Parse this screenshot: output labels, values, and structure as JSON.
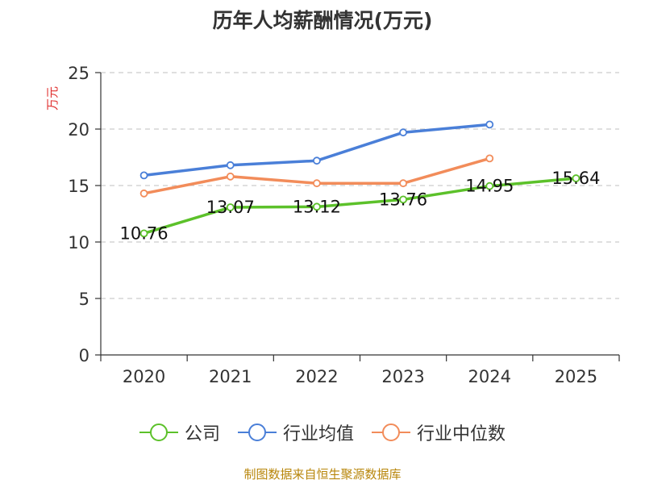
{
  "chart_data": {
    "type": "line",
    "title": "历年人均薪酬情况(万元)",
    "ylabel": "万元",
    "xlabel": "",
    "ylim": [
      0,
      25
    ],
    "yticks": [
      0,
      5,
      10,
      15,
      20,
      25
    ],
    "categories": [
      "2020",
      "2021",
      "2022",
      "2023",
      "2024",
      "2025"
    ],
    "grid": true,
    "legend_position": "bottom",
    "series": [
      {
        "name": "公司",
        "color": "#5cc12a",
        "values": [
          10.76,
          13.07,
          13.12,
          13.76,
          14.95,
          15.64
        ],
        "data_labels": [
          "10.76",
          "13.07",
          "13.12",
          "13.76",
          "14.95",
          "15.64"
        ]
      },
      {
        "name": "行业均值",
        "color": "#4a7fd8",
        "values": [
          15.9,
          16.8,
          17.2,
          19.7,
          20.4,
          null
        ]
      },
      {
        "name": "行业中位数",
        "color": "#f28c5a",
        "values": [
          14.3,
          15.8,
          15.2,
          15.2,
          17.4,
          null
        ]
      }
    ]
  },
  "footer": {
    "source": "制图数据来自恒生聚源数据库"
  }
}
